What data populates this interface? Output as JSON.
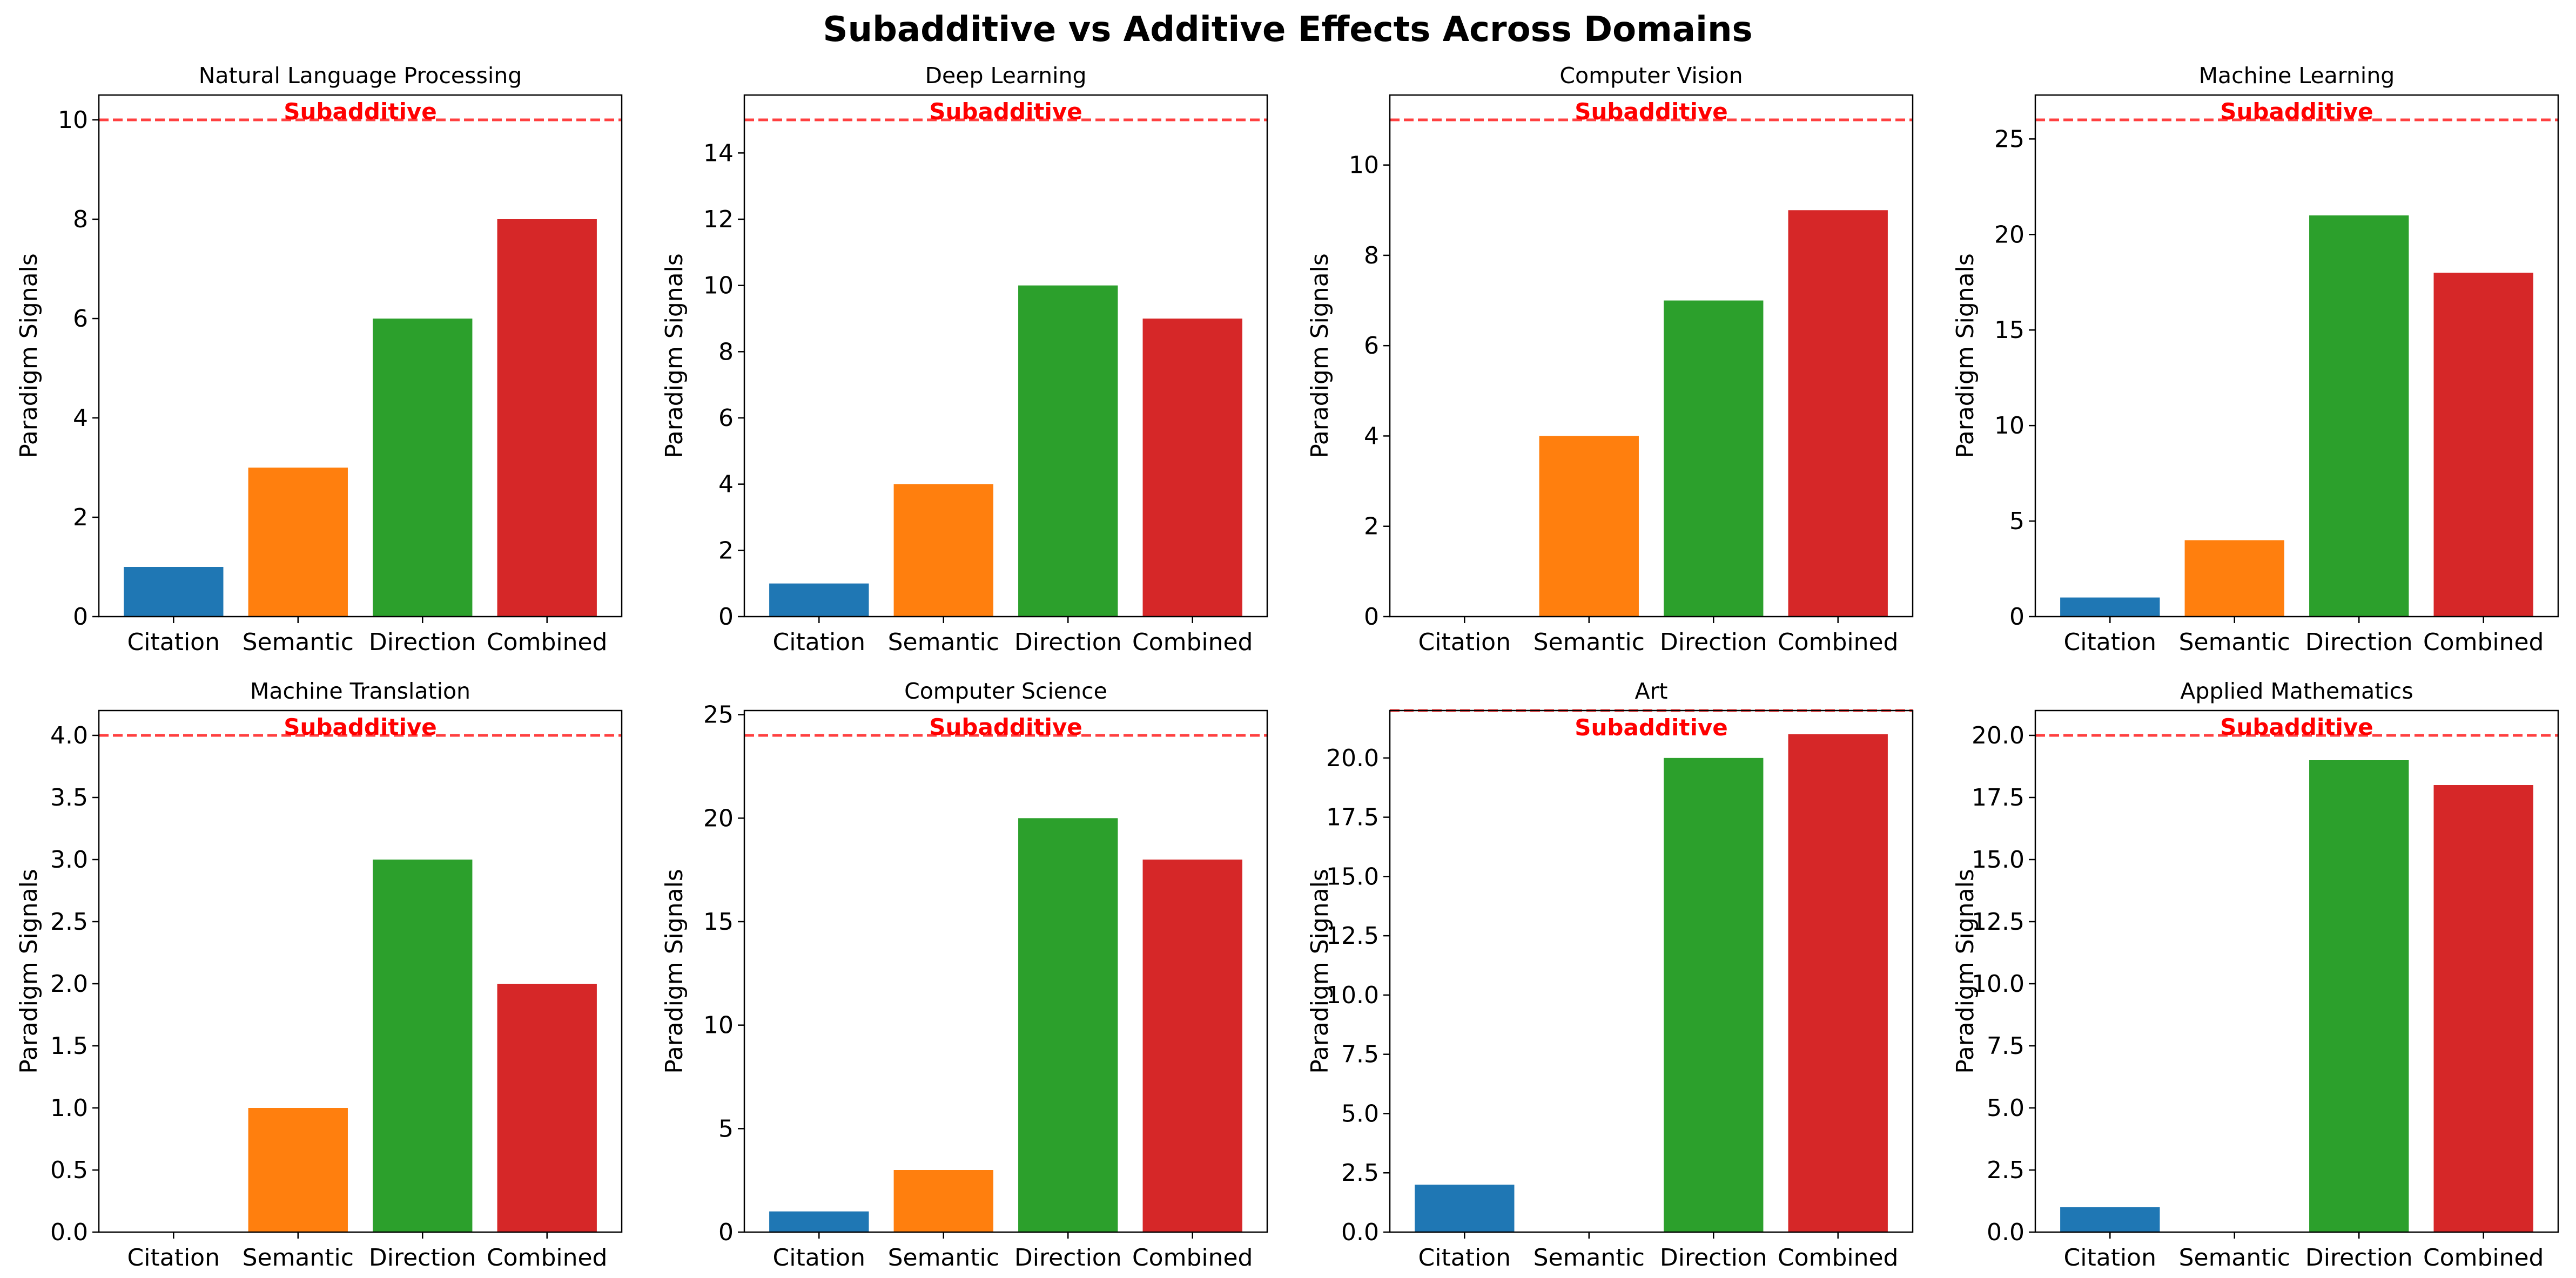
{
  "figure": {
    "title": "Subadditive vs Additive Effects Across Domains"
  },
  "colors": {
    "Citation": "#1f77b4",
    "Semantic": "#ff7f0e",
    "Direction": "#2ca02c",
    "Combined": "#d62728",
    "threshold_line": "#ff0000",
    "annotation": "#ff0000"
  },
  "chart_data": [
    {
      "type": "bar",
      "title": "Natural Language Processing",
      "categories": [
        "Citation",
        "Semantic",
        "Direction",
        "Combined"
      ],
      "values": [
        1,
        3,
        6,
        8
      ],
      "ylabel": "Paradigm Signals",
      "ylim": [
        0,
        10.5
      ],
      "yticks": [
        0,
        2,
        4,
        6,
        8,
        10
      ],
      "yticklabels": [
        "0",
        "2",
        "4",
        "6",
        "8",
        "10"
      ],
      "threshold": 10,
      "annotation": "Subadditive",
      "annotation_position": "above"
    },
    {
      "type": "bar",
      "title": "Deep Learning",
      "categories": [
        "Citation",
        "Semantic",
        "Direction",
        "Combined"
      ],
      "values": [
        1,
        4,
        10,
        9
      ],
      "ylabel": "Paradigm Signals",
      "ylim": [
        0,
        15.75
      ],
      "yticks": [
        0,
        2,
        4,
        6,
        8,
        10,
        12,
        14
      ],
      "yticklabels": [
        "0",
        "2",
        "4",
        "6",
        "8",
        "10",
        "12",
        "14"
      ],
      "threshold": 15,
      "annotation": "Subadditive",
      "annotation_position": "above"
    },
    {
      "type": "bar",
      "title": "Computer Vision",
      "categories": [
        "Citation",
        "Semantic",
        "Direction",
        "Combined"
      ],
      "values": [
        0,
        4,
        7,
        9
      ],
      "ylabel": "Paradigm Signals",
      "ylim": [
        0,
        11.55
      ],
      "yticks": [
        0,
        2,
        4,
        6,
        8,
        10
      ],
      "yticklabels": [
        "0",
        "2",
        "4",
        "6",
        "8",
        "10"
      ],
      "threshold": 11,
      "annotation": "Subadditive",
      "annotation_position": "above"
    },
    {
      "type": "bar",
      "title": "Machine Learning",
      "categories": [
        "Citation",
        "Semantic",
        "Direction",
        "Combined"
      ],
      "values": [
        1,
        4,
        21,
        18
      ],
      "ylabel": "Paradigm Signals",
      "ylim": [
        0,
        27.3
      ],
      "yticks": [
        0,
        5,
        10,
        15,
        20,
        25
      ],
      "yticklabels": [
        "0",
        "5",
        "10",
        "15",
        "20",
        "25"
      ],
      "threshold": 26,
      "annotation": "Subadditive",
      "annotation_position": "above"
    },
    {
      "type": "bar",
      "title": "Machine Translation",
      "categories": [
        "Citation",
        "Semantic",
        "Direction",
        "Combined"
      ],
      "values": [
        0,
        1,
        3,
        2
      ],
      "ylabel": "Paradigm Signals",
      "ylim": [
        0,
        4.2
      ],
      "yticks": [
        0,
        0.5,
        1,
        1.5,
        2,
        2.5,
        3,
        3.5,
        4
      ],
      "yticklabels": [
        "0.0",
        "0.5",
        "1.0",
        "1.5",
        "2.0",
        "2.5",
        "3.0",
        "3.5",
        "4.0"
      ],
      "threshold": 4,
      "annotation": "Subadditive",
      "annotation_position": "above"
    },
    {
      "type": "bar",
      "title": "Computer Science",
      "categories": [
        "Citation",
        "Semantic",
        "Direction",
        "Combined"
      ],
      "values": [
        1,
        3,
        20,
        18
      ],
      "ylabel": "Paradigm Signals",
      "ylim": [
        0,
        25.2
      ],
      "yticks": [
        0,
        5,
        10,
        15,
        20,
        25
      ],
      "yticklabels": [
        "0",
        "5",
        "10",
        "15",
        "20",
        "25"
      ],
      "threshold": 24,
      "annotation": "Subadditive",
      "annotation_position": "above"
    },
    {
      "type": "bar",
      "title": "Art",
      "categories": [
        "Citation",
        "Semantic",
        "Direction",
        "Combined"
      ],
      "values": [
        2,
        0,
        20,
        21
      ],
      "ylabel": "Paradigm Signals",
      "ylim": [
        0,
        22
      ],
      "yticks": [
        0,
        2.5,
        5,
        7.5,
        10,
        12.5,
        15,
        17.5,
        20
      ],
      "yticklabels": [
        "0.0",
        "2.5",
        "5.0",
        "7.5",
        "10.0",
        "12.5",
        "15.0",
        "17.5",
        "20.0"
      ],
      "threshold": 22,
      "annotation": "Subadditive",
      "annotation_position": "below"
    },
    {
      "type": "bar",
      "title": "Applied Mathematics",
      "categories": [
        "Citation",
        "Semantic",
        "Direction",
        "Combined"
      ],
      "values": [
        1,
        0,
        19,
        18
      ],
      "ylabel": "Paradigm Signals",
      "ylim": [
        0,
        21
      ],
      "yticks": [
        0,
        2.5,
        5,
        7.5,
        10,
        12.5,
        15,
        17.5,
        20
      ],
      "yticklabels": [
        "0.0",
        "2.5",
        "5.0",
        "7.5",
        "10.0",
        "12.5",
        "15.0",
        "17.5",
        "20.0"
      ],
      "threshold": 20,
      "annotation": "Subadditive",
      "annotation_position": "above"
    }
  ]
}
